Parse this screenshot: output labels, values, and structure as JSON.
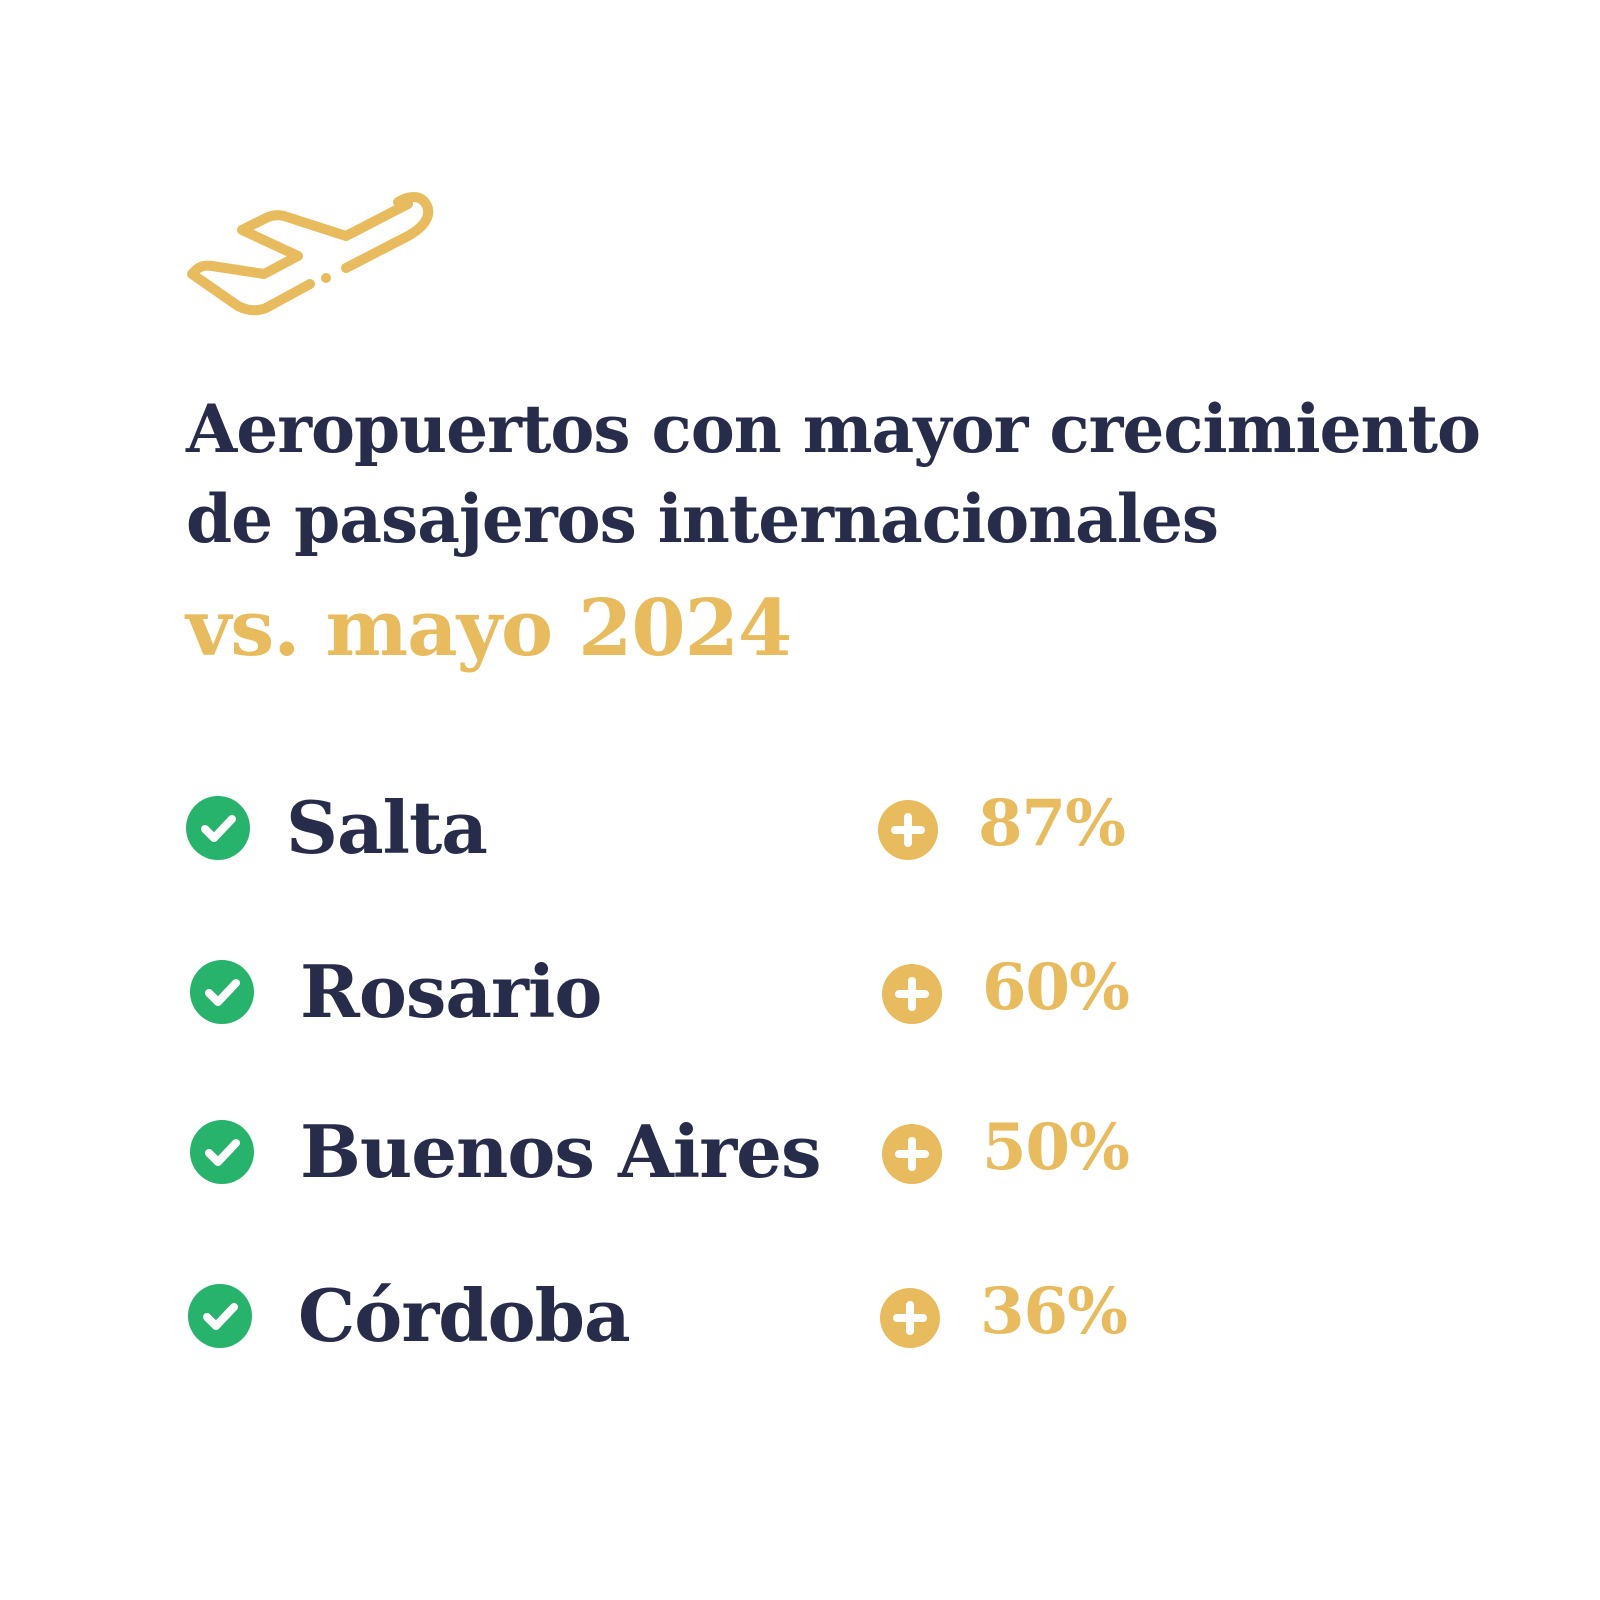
{
  "header": {
    "icon": "airplane-takeoff-icon",
    "title_line1": "Aeropuertos con mayor crecimiento",
    "title_line2": "de pasajeros internacionales",
    "subtitle": "vs. mayo 2024"
  },
  "colors": {
    "navy": "#272c4a",
    "gold": "#e8bb5e",
    "green": "#27b36b"
  },
  "airports": [
    {
      "name": "Salta",
      "growth": "87%"
    },
    {
      "name": "Rosario",
      "growth": "60%"
    },
    {
      "name": "Buenos Aires",
      "growth": "50%"
    },
    {
      "name": "Córdoba",
      "growth": "36%"
    }
  ]
}
